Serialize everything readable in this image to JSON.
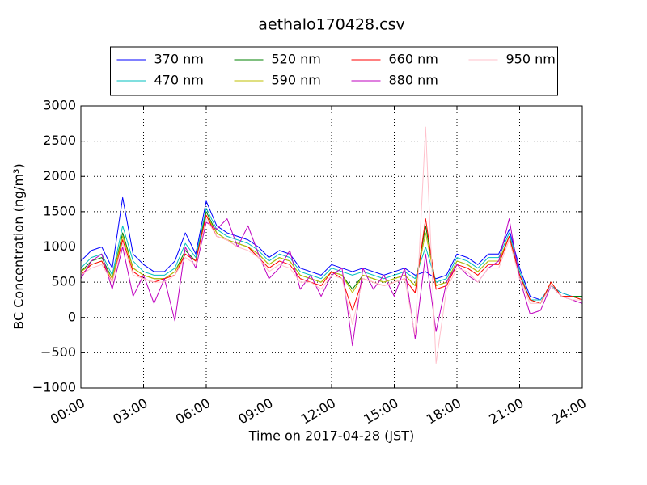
{
  "chart_data": {
    "type": "line",
    "title": "aethalo170428.csv",
    "xlabel": "Time on 2017-04-28 (JST)",
    "ylabel": "BC Concentration (ng/m³)",
    "x": [
      0,
      0.5,
      1,
      1.5,
      2,
      2.5,
      3,
      3.5,
      4,
      4.5,
      5,
      5.5,
      6,
      6.5,
      7,
      7.5,
      8,
      8.5,
      9,
      9.5,
      10,
      10.5,
      11,
      11.5,
      12,
      12.5,
      13,
      13.5,
      14,
      14.5,
      15,
      15.5,
      16,
      16.5,
      17,
      17.5,
      18,
      18.5,
      19,
      19.5,
      20,
      20.5,
      21,
      21.5,
      22,
      22.5,
      23,
      23.5,
      24
    ],
    "xlim": [
      0,
      24
    ],
    "xticks": [
      {
        "value": 0,
        "label": "00:00"
      },
      {
        "value": 3,
        "label": "03:00"
      },
      {
        "value": 6,
        "label": "06:00"
      },
      {
        "value": 9,
        "label": "09:00"
      },
      {
        "value": 12,
        "label": "12:00"
      },
      {
        "value": 15,
        "label": "15:00"
      },
      {
        "value": 18,
        "label": "18:00"
      },
      {
        "value": 21,
        "label": "21:00"
      },
      {
        "value": 24,
        "label": "24:00"
      }
    ],
    "ylim": [
      -1000,
      3000
    ],
    "yticks": [
      {
        "value": -1000,
        "label": "−1000"
      },
      {
        "value": -500,
        "label": "−500"
      },
      0,
      500,
      1000,
      1500,
      2000,
      2500,
      3000
    ],
    "grid": true,
    "legend": "upper center",
    "series": [
      {
        "name": "370 nm",
        "color": "#0000ff",
        "values": [
          800,
          950,
          1000,
          700,
          1700,
          900,
          750,
          650,
          650,
          800,
          1200,
          900,
          1650,
          1300,
          1200,
          1150,
          1100,
          1000,
          850,
          950,
          900,
          700,
          650,
          600,
          750,
          700,
          650,
          700,
          650,
          600,
          650,
          700,
          600,
          650,
          550,
          600,
          900,
          850,
          750,
          900,
          900,
          1250,
          700,
          300,
          250,
          450,
          350,
          300,
          300
        ]
      },
      {
        "name": "470 nm",
        "color": "#00bfbf",
        "values": [
          700,
          850,
          900,
          600,
          1300,
          800,
          650,
          600,
          600,
          700,
          1050,
          850,
          1550,
          1250,
          1150,
          1100,
          1050,
          950,
          800,
          900,
          850,
          650,
          600,
          550,
          700,
          650,
          600,
          650,
          600,
          550,
          600,
          650,
          550,
          1000,
          500,
          550,
          850,
          800,
          700,
          850,
          850,
          1200,
          650,
          250,
          250,
          450,
          350,
          300,
          300
        ]
      },
      {
        "name": "520 nm",
        "color": "#008000",
        "values": [
          650,
          800,
          850,
          550,
          1200,
          700,
          600,
          550,
          550,
          650,
          950,
          800,
          1500,
          1200,
          1100,
          1050,
          1000,
          900,
          750,
          850,
          800,
          600,
          550,
          500,
          650,
          600,
          400,
          600,
          550,
          500,
          550,
          600,
          450,
          1300,
          450,
          500,
          800,
          750,
          650,
          800,
          800,
          1150,
          600,
          250,
          200,
          450,
          300,
          300,
          300
        ]
      },
      {
        "name": "590 nm",
        "color": "#bfbf00",
        "values": [
          650,
          750,
          800,
          550,
          1150,
          700,
          600,
          550,
          550,
          650,
          900,
          800,
          1450,
          1200,
          1100,
          1050,
          1000,
          900,
          750,
          850,
          800,
          600,
          550,
          500,
          650,
          600,
          350,
          600,
          550,
          500,
          550,
          600,
          450,
          1200,
          450,
          500,
          800,
          750,
          650,
          800,
          800,
          1150,
          600,
          250,
          200,
          500,
          300,
          300,
          250
        ]
      },
      {
        "name": "660 nm",
        "color": "#ff0000",
        "values": [
          600,
          750,
          800,
          500,
          1100,
          650,
          550,
          500,
          550,
          600,
          900,
          800,
          1450,
          1150,
          1100,
          1000,
          1000,
          850,
          700,
          800,
          750,
          550,
          500,
          450,
          650,
          550,
          100,
          550,
          500,
          450,
          500,
          550,
          350,
          1400,
          400,
          450,
          750,
          700,
          600,
          750,
          750,
          1150,
          600,
          250,
          200,
          500,
          300,
          300,
          250
        ]
      },
      {
        "name": "880 nm",
        "color": "#bf00bf",
        "values": [
          550,
          800,
          900,
          400,
          1000,
          300,
          600,
          200,
          550,
          -50,
          1000,
          700,
          1350,
          1250,
          1400,
          1000,
          1300,
          900,
          550,
          700,
          950,
          400,
          600,
          300,
          600,
          700,
          -400,
          700,
          400,
          600,
          300,
          700,
          -300,
          900,
          -200,
          500,
          750,
          600,
          500,
          700,
          800,
          1400,
          550,
          50,
          100,
          450,
          300,
          250,
          200
        ]
      },
      {
        "name": "950 nm",
        "color": "#ffc0cb",
        "values": [
          600,
          700,
          750,
          500,
          1050,
          600,
          550,
          500,
          500,
          600,
          850,
          750,
          1400,
          1150,
          1100,
          1000,
          950,
          850,
          650,
          750,
          700,
          500,
          500,
          400,
          600,
          550,
          -100,
          550,
          500,
          450,
          500,
          550,
          -250,
          2700,
          -650,
          400,
          700,
          650,
          500,
          700,
          700,
          1100,
          550,
          200,
          200,
          450,
          300,
          250,
          250
        ]
      }
    ]
  }
}
